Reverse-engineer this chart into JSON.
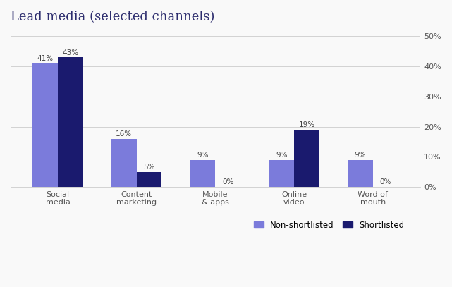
{
  "title": "Lead media (selected channels)",
  "categories": [
    "Social\nmedia",
    "Content\nmarketing",
    "Mobile\n& apps",
    "Online\nvideo",
    "Word of\nmouth"
  ],
  "non_shortlisted": [
    41,
    16,
    9,
    9,
    9
  ],
  "shortlisted": [
    43,
    5,
    0,
    19,
    0
  ],
  "non_shortlisted_color": "#7b7bdb",
  "shortlisted_color": "#1a1a6e",
  "bar_width": 0.32,
  "ylim": [
    0,
    52
  ],
  "yticks": [
    0,
    10,
    20,
    30,
    40,
    50
  ],
  "ytick_labels": [
    "0%",
    "10%",
    "20%",
    "30%",
    "40%",
    "50%"
  ],
  "title_color": "#2d2d6e",
  "title_fontsize": 13,
  "legend_labels": [
    "Non-shortlisted",
    "Shortlisted"
  ],
  "background_color": "#f9f9f9",
  "label_fontsize": 7.5,
  "tick_fontsize": 8,
  "grid_color": "#cccccc"
}
